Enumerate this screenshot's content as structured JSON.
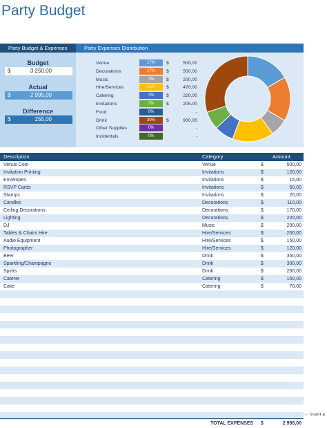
{
  "title": "Party Budget",
  "tabs": [
    "Party Budget & Expenses",
    "Party Expenses Distribution"
  ],
  "summary": {
    "budget": {
      "label": "Budget",
      "currency": "$",
      "value": "3 250,00"
    },
    "actual": {
      "label": "Actual",
      "currency": "$",
      "value": "2 995,00"
    },
    "difference": {
      "label": "Difference",
      "currency": "$",
      "value": "255,00"
    }
  },
  "distribution": [
    {
      "name": "Venue",
      "pct": "17%",
      "currency": "$",
      "amount": "500,00",
      "color": "#5b9bd5"
    },
    {
      "name": "Decorations",
      "pct": "17%",
      "currency": "$",
      "amount": "500,00",
      "color": "#ed7d31"
    },
    {
      "name": "Music",
      "pct": "7%",
      "currency": "$",
      "amount": "200,00",
      "color": "#a5a5a5"
    },
    {
      "name": "Hire/Services",
      "pct": "16%",
      "currency": "$",
      "amount": "470,00",
      "color": "#ffc000"
    },
    {
      "name": "Catering",
      "pct": "7%",
      "currency": "$",
      "amount": "220,00",
      "color": "#4472c4"
    },
    {
      "name": "Invitations",
      "pct": "7%",
      "currency": "$",
      "amount": "205,00",
      "color": "#70ad47"
    },
    {
      "name": "Food",
      "pct": "0%",
      "currency": "",
      "amount": "-",
      "color": "#255e91"
    },
    {
      "name": "Drink",
      "pct": "30%",
      "currency": "$",
      "amount": "900,00",
      "color": "#9e480e"
    },
    {
      "name": "Other Supplies",
      "pct": "0%",
      "currency": "",
      "amount": "-",
      "color": "#7030a0"
    },
    {
      "name": "Incidentals",
      "pct": "0%",
      "currency": "",
      "amount": "-",
      "color": "#43682b"
    }
  ],
  "table": {
    "headers": {
      "description": "Description",
      "category": "Category",
      "amount": "Amount"
    },
    "rows": [
      {
        "description": "Venue Cost",
        "category": "Venue",
        "currency": "$",
        "amount": "500,00"
      },
      {
        "description": "Invitation Printing",
        "category": "Invitations",
        "currency": "$",
        "amount": "120,00"
      },
      {
        "description": "Envelopes",
        "category": "Invitations",
        "currency": "$",
        "amount": "15,00"
      },
      {
        "description": "RSVP Cards",
        "category": "Invitations",
        "currency": "$",
        "amount": "50,00"
      },
      {
        "description": "Stamps",
        "category": "Invitations",
        "currency": "$",
        "amount": "20,00"
      },
      {
        "description": "Candles",
        "category": "Decorations",
        "currency": "$",
        "amount": "110,00"
      },
      {
        "description": "Ceiling Decorations",
        "category": "Decorations",
        "currency": "$",
        "amount": "170,00"
      },
      {
        "description": "Lighting",
        "category": "Decorations",
        "currency": "$",
        "amount": "220,00"
      },
      {
        "description": "DJ",
        "category": "Music",
        "currency": "$",
        "amount": "200,00"
      },
      {
        "description": "Tables & Chairs Hire",
        "category": "Hire/Services",
        "currency": "$",
        "amount": "200,00"
      },
      {
        "description": "Audio Equipment",
        "category": "Hire/Services",
        "currency": "$",
        "amount": "150,00"
      },
      {
        "description": "Photographer",
        "category": "Hire/Services",
        "currency": "$",
        "amount": "120,00"
      },
      {
        "description": "Beer",
        "category": "Drink",
        "currency": "$",
        "amount": "350,00"
      },
      {
        "description": "Sparkling/Champagne",
        "category": "Drink",
        "currency": "$",
        "amount": "300,00"
      },
      {
        "description": "Spirits",
        "category": "Drink",
        "currency": "$",
        "amount": "250,00"
      },
      {
        "description": "Caterer",
        "category": "Catering",
        "currency": "$",
        "amount": "150,00"
      },
      {
        "description": "Cake",
        "category": "Catering",
        "currency": "$",
        "amount": "70,00"
      }
    ],
    "empty_rows": 17
  },
  "total": {
    "label": "TOTAL EXPENSES",
    "currency": "$",
    "value": "2 995,00"
  },
  "insert_hint": "← Insert a"
}
